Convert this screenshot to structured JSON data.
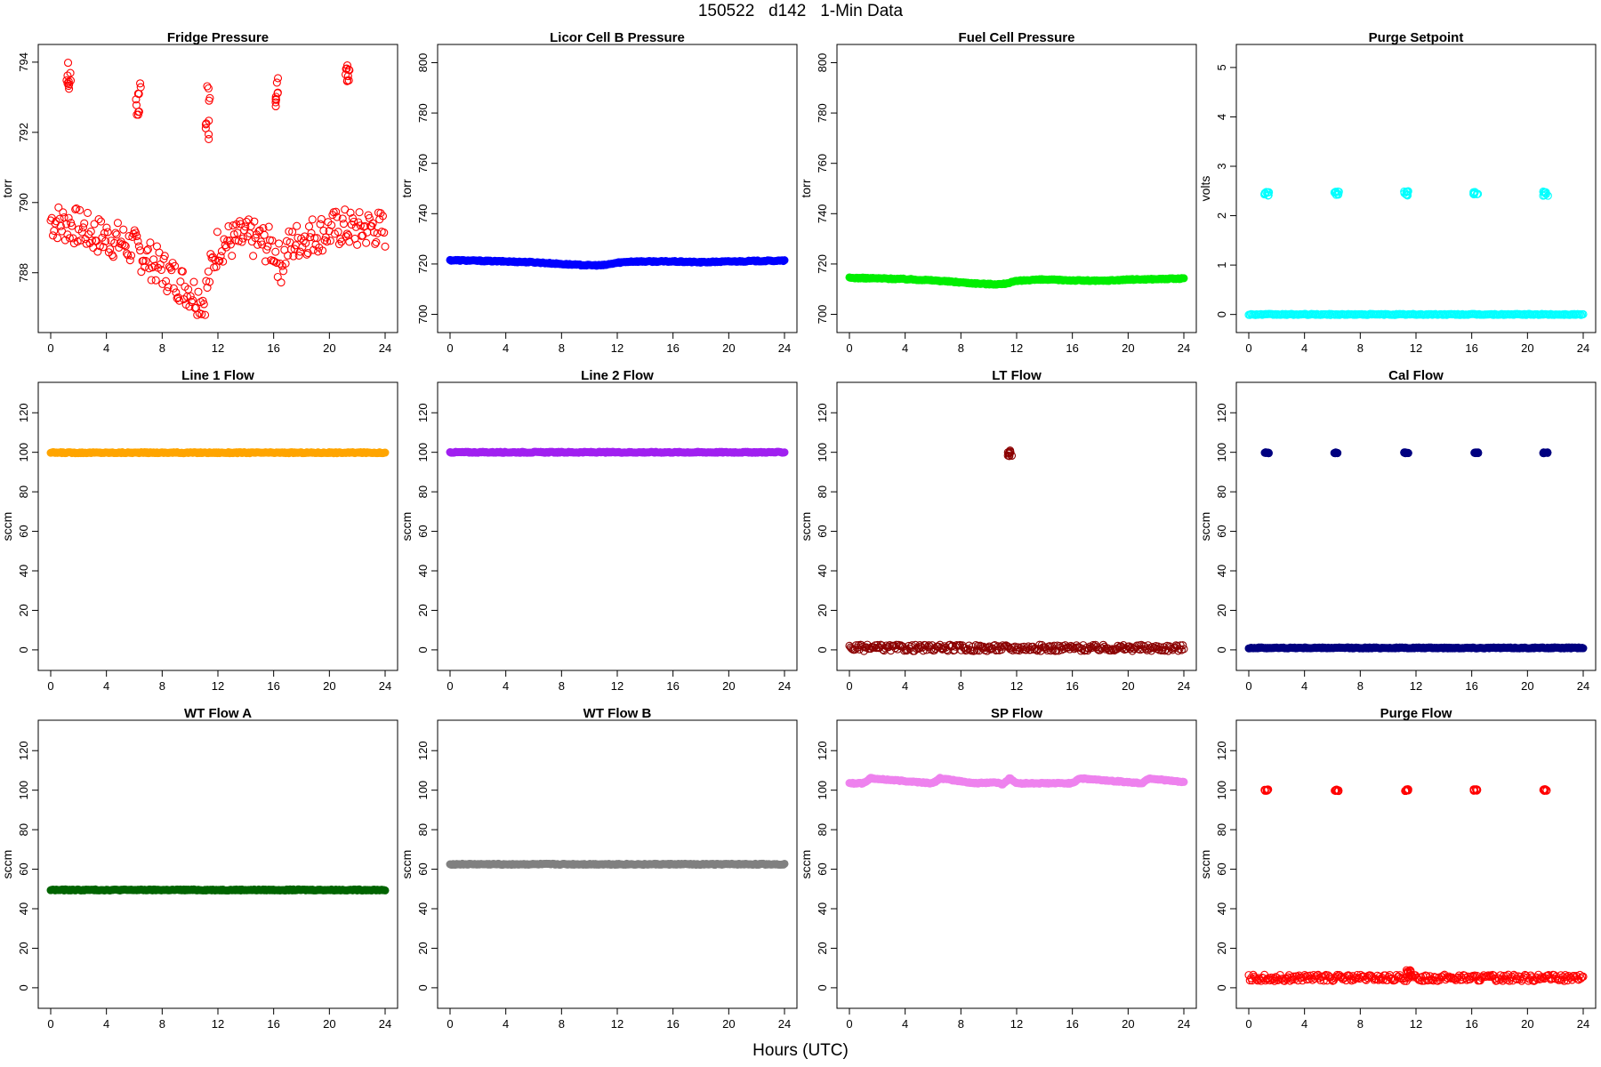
{
  "figure": {
    "title": "150522   d142   1-Min Data",
    "xlabel": "Hours (UTC)"
  },
  "chart_data": [
    {
      "type": "scatter",
      "title": "Fridge Pressure",
      "ylabel": "torr",
      "xlim": [
        0,
        24
      ],
      "ylim": [
        786.6,
        794.2
      ],
      "yticks": [
        788,
        790,
        792,
        794
      ],
      "xticks": [
        0,
        4,
        8,
        12,
        16,
        20,
        24
      ],
      "color": "#ff0000",
      "marker": "open",
      "series": [
        {
          "x": [
            0,
            1,
            2,
            3,
            4,
            5,
            6,
            7,
            8,
            9,
            10,
            11,
            11.5,
            12,
            13,
            14,
            15,
            16,
            16.5,
            17,
            18,
            19,
            20,
            21,
            22,
            23,
            24
          ],
          "y": [
            789.5,
            789.4,
            789.3,
            789.1,
            789,
            788.9,
            788.7,
            788.4,
            788.1,
            787.8,
            787.5,
            787.2,
            788.1,
            788.8,
            788.9,
            789,
            788.9,
            788.7,
            788.2,
            788.7,
            789,
            789.1,
            789.2,
            789.3,
            789.2,
            789.3,
            789.2
          ]
        }
      ],
      "clusters": [
        {
          "x": 1.3,
          "y": [
            793.2,
            794
          ]
        },
        {
          "x": 6.3,
          "y": [
            792.5,
            793.4
          ]
        },
        {
          "x": 11.3,
          "y": [
            791.7,
            793.4
          ]
        },
        {
          "x": 16.3,
          "y": [
            792.6,
            793.6
          ]
        },
        {
          "x": 21.3,
          "y": [
            793.3,
            794
          ]
        }
      ]
    },
    {
      "type": "scatter",
      "title": "Licor Cell B Pressure",
      "ylabel": "torr",
      "xlim": [
        0,
        24
      ],
      "ylim": [
        697,
        803
      ],
      "yticks": [
        700,
        720,
        740,
        760,
        780,
        800
      ],
      "xticks": [
        0,
        4,
        8,
        12,
        16,
        20,
        24
      ],
      "color": "#0000ff",
      "marker": "filled",
      "series": [
        {
          "x": [
            0,
            2,
            4,
            6,
            8,
            9,
            10,
            11,
            12,
            13,
            14,
            16,
            18,
            20,
            22,
            24
          ],
          "y": [
            721.5,
            721.3,
            721,
            720.7,
            720,
            719.7,
            719.5,
            719.5,
            720.5,
            721,
            721,
            721,
            720.7,
            721,
            721.2,
            721.3
          ]
        }
      ]
    },
    {
      "type": "scatter",
      "title": "Fuel Cell Pressure",
      "ylabel": "torr",
      "xlim": [
        0,
        24
      ],
      "ylim": [
        697,
        803
      ],
      "yticks": [
        700,
        720,
        740,
        760,
        780,
        800
      ],
      "xticks": [
        0,
        4,
        8,
        12,
        16,
        20,
        24
      ],
      "color": "#00ee00",
      "marker": "filled",
      "series": [
        {
          "x": [
            0,
            2,
            4,
            6,
            8,
            9,
            10,
            11,
            12,
            13,
            14,
            16,
            18,
            20,
            22,
            24
          ],
          "y": [
            714.5,
            714.3,
            714,
            713.5,
            712.7,
            712.3,
            712,
            712,
            713.2,
            713.7,
            713.8,
            713.5,
            713.3,
            713.8,
            714,
            714.2
          ]
        }
      ]
    },
    {
      "type": "scatter",
      "title": "Purge Setpoint",
      "ylabel": "volts",
      "xlim": [
        0,
        24
      ],
      "ylim": [
        -0.15,
        5.25
      ],
      "yticks": [
        0,
        1,
        2,
        3,
        4,
        5
      ],
      "xticks": [
        0,
        4,
        8,
        12,
        16,
        20,
        24
      ],
      "color": "#00ffff",
      "marker": "open",
      "baseline": {
        "x": [
          0,
          24
        ],
        "y": 0
      },
      "clusters": [
        {
          "x": 1.3,
          "y": [
            2.4,
            2.5
          ]
        },
        {
          "x": 6.3,
          "y": [
            2.4,
            2.5
          ]
        },
        {
          "x": 11.3,
          "y": [
            2.4,
            2.5
          ]
        },
        {
          "x": 16.3,
          "y": [
            2.4,
            2.5
          ]
        },
        {
          "x": 21.3,
          "y": [
            2.4,
            2.5
          ]
        }
      ]
    },
    {
      "type": "scatter",
      "title": "Line 1 Flow",
      "ylabel": "sccm",
      "xlim": [
        0,
        24
      ],
      "ylim": [
        -5,
        130
      ],
      "yticks": [
        0,
        20,
        40,
        60,
        80,
        100,
        120
      ],
      "xticks": [
        0,
        4,
        8,
        12,
        16,
        20,
        24
      ],
      "color": "#ffa500",
      "marker": "filled",
      "baseline": {
        "x": [
          0,
          24
        ],
        "y": 99.8
      }
    },
    {
      "type": "scatter",
      "title": "Line 2 Flow",
      "ylabel": "sccm",
      "xlim": [
        0,
        24
      ],
      "ylim": [
        -5,
        130
      ],
      "yticks": [
        0,
        20,
        40,
        60,
        80,
        100,
        120
      ],
      "xticks": [
        0,
        4,
        8,
        12,
        16,
        20,
        24
      ],
      "color": "#a020f0",
      "marker": "filled",
      "baseline": {
        "x": [
          0,
          24
        ],
        "y": 100
      }
    },
    {
      "type": "scatter",
      "title": "LT Flow",
      "ylabel": "sccm",
      "xlim": [
        0,
        24
      ],
      "ylim": [
        -5,
        130
      ],
      "yticks": [
        0,
        20,
        40,
        60,
        80,
        100,
        120
      ],
      "xticks": [
        0,
        4,
        8,
        12,
        16,
        20,
        24
      ],
      "color": "#8b0000",
      "marker": "open",
      "baseline": {
        "x": [
          0,
          24
        ],
        "y": 1
      },
      "clusters": [
        {
          "x": 11.5,
          "y": [
            98,
            101
          ]
        }
      ]
    },
    {
      "type": "scatter",
      "title": "Cal Flow",
      "ylabel": "sccm",
      "xlim": [
        0,
        24
      ],
      "ylim": [
        -5,
        130
      ],
      "yticks": [
        0,
        20,
        40,
        60,
        80,
        100,
        120
      ],
      "xticks": [
        0,
        4,
        8,
        12,
        16,
        20,
        24
      ],
      "color": "#000080",
      "marker": "filled",
      "baseline": {
        "x": [
          0,
          24
        ],
        "y": 1
      },
      "clusters": [
        {
          "x": 1.3,
          "y": [
            99.5,
            100
          ]
        },
        {
          "x": 6.3,
          "y": [
            99.5,
            100
          ]
        },
        {
          "x": 11.3,
          "y": [
            99.5,
            100
          ]
        },
        {
          "x": 16.3,
          "y": [
            99.5,
            100
          ]
        },
        {
          "x": 21.3,
          "y": [
            99.5,
            100
          ]
        }
      ]
    },
    {
      "type": "scatter",
      "title": "WT Flow A",
      "ylabel": "sccm",
      "xlim": [
        0,
        24
      ],
      "ylim": [
        -5,
        130
      ],
      "yticks": [
        0,
        20,
        40,
        60,
        80,
        100,
        120
      ],
      "xticks": [
        0,
        4,
        8,
        12,
        16,
        20,
        24
      ],
      "color": "#006400",
      "marker": "filled",
      "baseline": {
        "x": [
          0,
          24
        ],
        "y": 49.5
      }
    },
    {
      "type": "scatter",
      "title": "WT Flow B",
      "ylabel": "sccm",
      "xlim": [
        0,
        24
      ],
      "ylim": [
        -5,
        130
      ],
      "yticks": [
        0,
        20,
        40,
        60,
        80,
        100,
        120
      ],
      "xticks": [
        0,
        4,
        8,
        12,
        16,
        20,
        24
      ],
      "color": "#808080",
      "marker": "filled",
      "baseline": {
        "x": [
          0,
          24
        ],
        "y": 62.5
      }
    },
    {
      "type": "scatter",
      "title": "SP Flow",
      "ylabel": "sccm",
      "xlim": [
        0,
        24
      ],
      "ylim": [
        -5,
        130
      ],
      "yticks": [
        0,
        20,
        40,
        60,
        80,
        100,
        120
      ],
      "xticks": [
        0,
        4,
        8,
        12,
        16,
        20,
        24
      ],
      "color": "#ee82ee",
      "marker": "filled",
      "series": [
        {
          "x": [
            0,
            1,
            1.5,
            6,
            6.5,
            9,
            10.5,
            11,
            11.5,
            12,
            16,
            16.5,
            21,
            21.5,
            24
          ],
          "y": [
            103.5,
            103.5,
            106,
            103.5,
            106,
            103.5,
            104,
            103,
            106,
            103.5,
            103.5,
            106,
            103.5,
            106,
            104
          ]
        }
      ]
    },
    {
      "type": "scatter",
      "title": "Purge Flow",
      "ylabel": "sccm",
      "xlim": [
        0,
        24
      ],
      "ylim": [
        -5,
        130
      ],
      "yticks": [
        0,
        20,
        40,
        60,
        80,
        100,
        120
      ],
      "xticks": [
        0,
        4,
        8,
        12,
        16,
        20,
        24
      ],
      "color": "#ff0000",
      "marker": "open",
      "baseline": {
        "x": [
          0,
          24
        ],
        "y": 5
      },
      "clusters": [
        {
          "x": 1.3,
          "y": [
            99.5,
            100.5
          ]
        },
        {
          "x": 6.3,
          "y": [
            99.5,
            100.5
          ]
        },
        {
          "x": 11.3,
          "y": [
            99.5,
            100.5
          ]
        },
        {
          "x": 11.5,
          "y": [
            7,
            9
          ]
        },
        {
          "x": 16.3,
          "y": [
            99.5,
            100.5
          ]
        },
        {
          "x": 21.3,
          "y": [
            99.5,
            100.5
          ]
        }
      ]
    }
  ]
}
